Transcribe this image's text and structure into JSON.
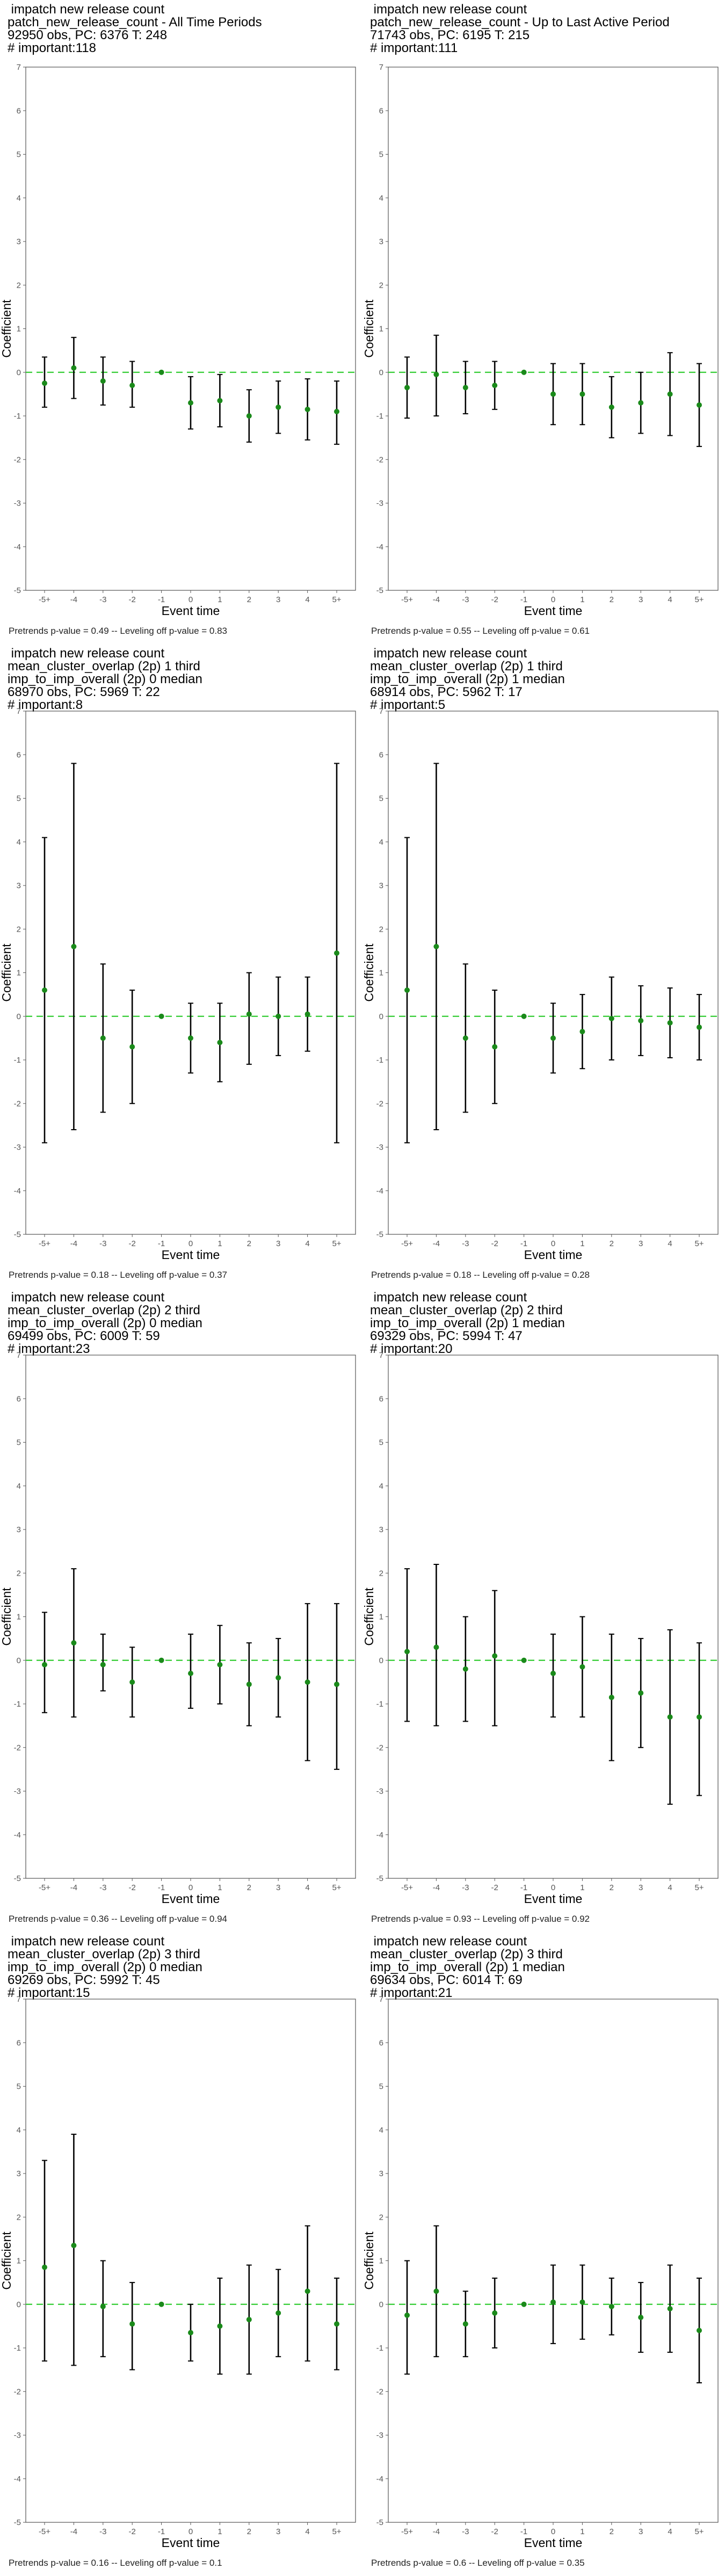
{
  "chart_data": [
    {
      "type": "scatter",
      "title": [
        " impatch new release count",
        "patch_new_release_count - All Time Periods",
        "92950 obs, PC: 6376 T: 248",
        "# important:118"
      ],
      "xlabel": "Event time",
      "ylabel": "Coefficient",
      "categories": [
        "-5+",
        "-4",
        "-3",
        "-2",
        "-1",
        "0",
        "1",
        "2",
        "3",
        "4",
        "5+"
      ],
      "ylim": [
        -5,
        7
      ],
      "yticks": [
        -5,
        -4,
        -3,
        -2,
        -1,
        0,
        1,
        2,
        3,
        4,
        5,
        6,
        7
      ],
      "values": [
        -0.25,
        0.1,
        -0.2,
        -0.3,
        0.0,
        -0.7,
        -0.65,
        -1.0,
        -0.8,
        -0.85,
        -0.9
      ],
      "ci_low": [
        -0.8,
        -0.6,
        -0.75,
        -0.8,
        0.0,
        -1.3,
        -1.25,
        -1.6,
        -1.4,
        -1.55,
        -1.65
      ],
      "ci_high": [
        0.35,
        0.8,
        0.35,
        0.25,
        0.0,
        -0.1,
        -0.05,
        -0.4,
        -0.2,
        -0.15,
        -0.2
      ],
      "footnote": "Pretrends p-value = 0.49 -- Leveling off p-value = 0.83",
      "grid": false
    },
    {
      "type": "scatter",
      "title": [
        " impatch new release count",
        "patch_new_release_count - Up to Last Active Period",
        "71743 obs, PC: 6195 T: 215",
        "# important:111"
      ],
      "xlabel": "Event time",
      "ylabel": "Coefficient",
      "categories": [
        "-5+",
        "-4",
        "-3",
        "-2",
        "-1",
        "0",
        "1",
        "2",
        "3",
        "4",
        "5+"
      ],
      "ylim": [
        -5,
        7
      ],
      "yticks": [
        -5,
        -4,
        -3,
        -2,
        -1,
        0,
        1,
        2,
        3,
        4,
        5,
        6,
        7
      ],
      "values": [
        -0.35,
        -0.05,
        -0.35,
        -0.3,
        0.0,
        -0.5,
        -0.5,
        -0.8,
        -0.7,
        -0.5,
        -0.75
      ],
      "ci_low": [
        -1.05,
        -1.0,
        -0.95,
        -0.85,
        0.0,
        -1.2,
        -1.2,
        -1.5,
        -1.4,
        -1.45,
        -1.7
      ],
      "ci_high": [
        0.35,
        0.85,
        0.25,
        0.25,
        0.0,
        0.2,
        0.2,
        -0.1,
        0.0,
        0.45,
        0.2
      ],
      "footnote": "Pretrends p-value = 0.55 -- Leveling off p-value = 0.61",
      "grid": false
    },
    {
      "type": "scatter",
      "title": [
        " impatch new release count",
        "mean_cluster_overlap (2p) 1 third",
        "imp_to_imp_overall (2p) 0 median",
        "68970 obs, PC: 5969 T: 22",
        "# important:8"
      ],
      "xlabel": "Event time",
      "ylabel": "Coefficient",
      "categories": [
        "-5+",
        "-4",
        "-3",
        "-2",
        "-1",
        "0",
        "1",
        "2",
        "3",
        "4",
        "5+"
      ],
      "ylim": [
        -5,
        7
      ],
      "yticks": [
        -5,
        -4,
        -3,
        -2,
        -1,
        0,
        1,
        2,
        3,
        4,
        5,
        6,
        7
      ],
      "values": [
        0.6,
        1.6,
        -0.5,
        -0.7,
        0.0,
        -0.5,
        -0.6,
        0.05,
        0.0,
        0.05,
        1.45
      ],
      "ci_low": [
        -2.9,
        -2.6,
        -2.2,
        -2.0,
        0.0,
        -1.3,
        -1.5,
        -1.1,
        -0.9,
        -0.8,
        -2.9
      ],
      "ci_high": [
        4.1,
        5.8,
        1.2,
        0.6,
        0.0,
        0.3,
        0.3,
        1.0,
        0.9,
        0.9,
        5.8
      ],
      "footnote": "Pretrends p-value = 0.18 -- Leveling off p-value = 0.37",
      "grid": false
    },
    {
      "type": "scatter",
      "title": [
        " impatch new release count",
        "mean_cluster_overlap (2p) 1 third",
        "imp_to_imp_overall (2p) 1 median",
        "68914 obs, PC: 5962 T: 17",
        "# important:5"
      ],
      "xlabel": "Event time",
      "ylabel": "Coefficient",
      "categories": [
        "-5+",
        "-4",
        "-3",
        "-2",
        "-1",
        "0",
        "1",
        "2",
        "3",
        "4",
        "5+"
      ],
      "ylim": [
        -5,
        7
      ],
      "yticks": [
        -5,
        -4,
        -3,
        -2,
        -1,
        0,
        1,
        2,
        3,
        4,
        5,
        6,
        7
      ],
      "values": [
        0.6,
        1.6,
        -0.5,
        -0.7,
        0.0,
        -0.5,
        -0.35,
        -0.05,
        -0.1,
        -0.15,
        -0.25
      ],
      "ci_low": [
        -2.9,
        -2.6,
        -2.2,
        -2.0,
        0.0,
        -1.3,
        -1.2,
        -1.0,
        -0.9,
        -0.95,
        -1.0
      ],
      "ci_high": [
        4.1,
        5.8,
        1.2,
        0.6,
        0.0,
        0.3,
        0.5,
        0.9,
        0.7,
        0.65,
        0.5
      ],
      "footnote": "Pretrends p-value = 0.18 -- Leveling off p-value = 0.28",
      "grid": false
    },
    {
      "type": "scatter",
      "title": [
        " impatch new release count",
        "mean_cluster_overlap (2p) 2 third",
        "imp_to_imp_overall (2p) 0 median",
        "69499 obs, PC: 6009 T: 59",
        "# important:23"
      ],
      "xlabel": "Event time",
      "ylabel": "Coefficient",
      "categories": [
        "-5+",
        "-4",
        "-3",
        "-2",
        "-1",
        "0",
        "1",
        "2",
        "3",
        "4",
        "5+"
      ],
      "ylim": [
        -5,
        7
      ],
      "yticks": [
        -5,
        -4,
        -3,
        -2,
        -1,
        0,
        1,
        2,
        3,
        4,
        5,
        6,
        7
      ],
      "values": [
        -0.1,
        0.4,
        -0.1,
        -0.5,
        0.0,
        -0.3,
        -0.1,
        -0.55,
        -0.4,
        -0.5,
        -0.55
      ],
      "ci_low": [
        -1.2,
        -1.3,
        -0.7,
        -1.3,
        0.0,
        -1.1,
        -1.0,
        -1.5,
        -1.3,
        -2.3,
        -2.5
      ],
      "ci_high": [
        1.1,
        2.1,
        0.6,
        0.3,
        0.0,
        0.6,
        0.8,
        0.4,
        0.5,
        1.3,
        1.3
      ],
      "footnote": "Pretrends p-value = 0.36 -- Leveling off p-value = 0.94",
      "grid": false
    },
    {
      "type": "scatter",
      "title": [
        " impatch new release count",
        "mean_cluster_overlap (2p) 2 third",
        "imp_to_imp_overall (2p) 1 median",
        "69329 obs, PC: 5994 T: 47",
        "# important:20"
      ],
      "xlabel": "Event time",
      "ylabel": "Coefficient",
      "categories": [
        "-5+",
        "-4",
        "-3",
        "-2",
        "-1",
        "0",
        "1",
        "2",
        "3",
        "4",
        "5+"
      ],
      "ylim": [
        -5,
        7
      ],
      "yticks": [
        -5,
        -4,
        -3,
        -2,
        -1,
        0,
        1,
        2,
        3,
        4,
        5,
        6,
        7
      ],
      "values": [
        0.2,
        0.3,
        -0.2,
        0.1,
        0.0,
        -0.3,
        -0.15,
        -0.85,
        -0.75,
        -1.3,
        -1.3
      ],
      "ci_low": [
        -1.4,
        -1.5,
        -1.4,
        -1.5,
        0.0,
        -1.3,
        -1.3,
        -2.3,
        -2.0,
        -3.3,
        -3.1
      ],
      "ci_high": [
        2.1,
        2.2,
        1.0,
        1.6,
        0.0,
        0.6,
        1.0,
        0.6,
        0.5,
        0.7,
        0.4
      ],
      "footnote": "Pretrends p-value = 0.93 -- Leveling off p-value = 0.92",
      "grid": false
    },
    {
      "type": "scatter",
      "title": [
        " impatch new release count",
        "mean_cluster_overlap (2p) 3 third",
        "imp_to_imp_overall (2p) 0 median",
        "69269 obs, PC: 5992 T: 45",
        "# important:15"
      ],
      "xlabel": "Event time",
      "ylabel": "Coefficient",
      "categories": [
        "-5+",
        "-4",
        "-3",
        "-2",
        "-1",
        "0",
        "1",
        "2",
        "3",
        "4",
        "5+"
      ],
      "ylim": [
        -5,
        7
      ],
      "yticks": [
        -5,
        -4,
        -3,
        -2,
        -1,
        0,
        1,
        2,
        3,
        4,
        5,
        6,
        7
      ],
      "values": [
        0.85,
        1.35,
        -0.05,
        -0.45,
        0.0,
        -0.65,
        -0.5,
        -0.35,
        -0.2,
        0.3,
        -0.45
      ],
      "ci_low": [
        -1.3,
        -1.4,
        -1.2,
        -1.5,
        0.0,
        -1.3,
        -1.6,
        -1.6,
        -1.2,
        -1.3,
        -1.5
      ],
      "ci_high": [
        3.3,
        3.9,
        1.0,
        0.5,
        0.0,
        0.0,
        0.6,
        0.9,
        0.8,
        1.8,
        0.6
      ],
      "footnote": "Pretrends p-value = 0.16 -- Leveling off p-value = 0.1",
      "grid": false
    },
    {
      "type": "scatter",
      "title": [
        " impatch new release count",
        "mean_cluster_overlap (2p) 3 third",
        "imp_to_imp_overall (2p) 1 median",
        "69634 obs, PC: 6014 T: 69",
        "# important:21"
      ],
      "xlabel": "Event time",
      "ylabel": "Coefficient",
      "categories": [
        "-5+",
        "-4",
        "-3",
        "-2",
        "-1",
        "0",
        "1",
        "2",
        "3",
        "4",
        "5+"
      ],
      "ylim": [
        -5,
        7
      ],
      "yticks": [
        -5,
        -4,
        -3,
        -2,
        -1,
        0,
        1,
        2,
        3,
        4,
        5,
        6,
        7
      ],
      "values": [
        -0.25,
        0.3,
        -0.45,
        -0.2,
        0.0,
        0.05,
        0.05,
        -0.05,
        -0.3,
        -0.1,
        -0.6
      ],
      "ci_low": [
        -1.6,
        -1.2,
        -1.2,
        -1.0,
        0.0,
        -0.9,
        -0.8,
        -0.7,
        -1.1,
        -1.1,
        -1.8
      ],
      "ci_high": [
        1.0,
        1.8,
        0.3,
        0.6,
        0.0,
        0.9,
        0.9,
        0.6,
        0.5,
        0.9,
        0.6
      ],
      "footnote": "Pretrends p-value = 0.6 -- Leveling off p-value = 0.35",
      "grid": false
    }
  ],
  "colors": {
    "point": "#1a8a1a",
    "errorbar": "#000000",
    "zero_line": "#33cc33",
    "axis": "#555555"
  }
}
